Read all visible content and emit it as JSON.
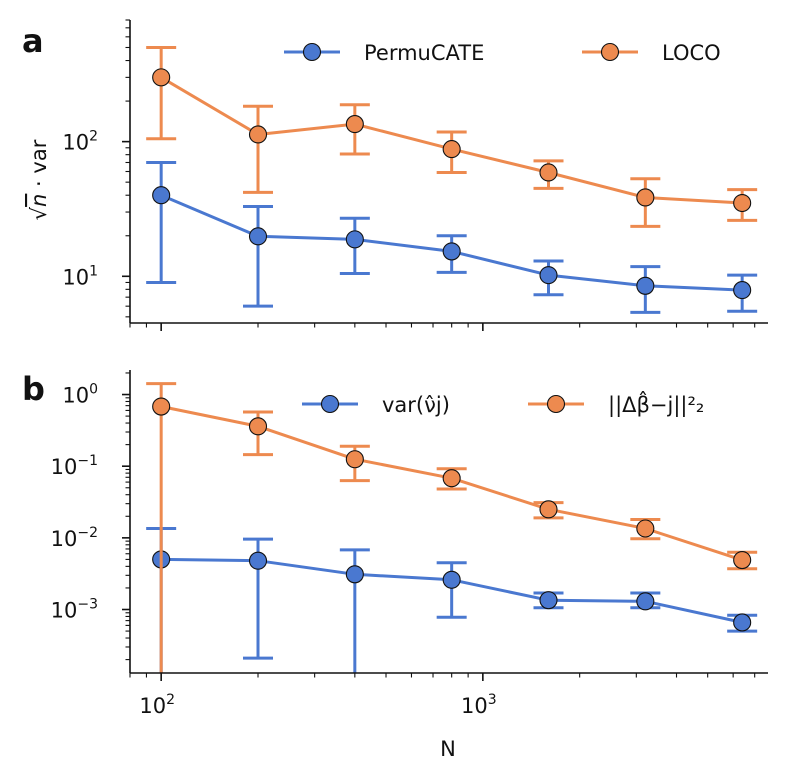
{
  "chart_data": [
    {
      "type": "line",
      "panel_label": "a",
      "title": "",
      "ylabel_parts": [
        "√",
        "n",
        " · var"
      ],
      "yscale": "log",
      "ylim": [
        4.5,
        800
      ],
      "x": [
        100,
        200,
        400,
        800,
        1600,
        3200,
        6400
      ],
      "yticks": [
        {
          "value": 10,
          "base": "10",
          "exp": "1"
        },
        {
          "value": 100,
          "base": "10",
          "exp": "2"
        }
      ],
      "legend_position": "top-right",
      "series": [
        {
          "name": "PermuCATE",
          "color": "#4a78d0",
          "values": [
            40,
            19.8,
            18.8,
            15.3,
            10.2,
            8.5,
            7.9
          ],
          "err_low": [
            9,
            6,
            10.5,
            10.7,
            7.3,
            5.4,
            5.5
          ],
          "err_high": [
            70,
            33,
            27,
            20,
            13,
            11.8,
            10.2
          ]
        },
        {
          "name": "LOCO",
          "color": "#ed8a4f",
          "values": [
            300,
            113,
            135,
            88,
            59,
            38.5,
            35
          ],
          "err_low": [
            105,
            42,
            81,
            59,
            45,
            23.5,
            26
          ],
          "err_high": [
            500,
            183,
            188,
            118,
            72,
            53,
            44
          ]
        }
      ]
    },
    {
      "type": "line",
      "panel_label": "b",
      "title": "",
      "xlabel": "N",
      "yscale": "log",
      "ylim": [
        0.00013,
        2.2
      ],
      "x": [
        100,
        200,
        400,
        800,
        1600,
        3200,
        6400
      ],
      "yticks": [
        {
          "value": 1,
          "base": "10",
          "exp": "0"
        },
        {
          "value": 0.1,
          "base": "10",
          "exp": "−1"
        },
        {
          "value": 0.01,
          "base": "10",
          "exp": "−2"
        },
        {
          "value": 0.001,
          "base": "10",
          "exp": "−3"
        }
      ],
      "xticks": [
        {
          "value": 100,
          "base": "10",
          "exp": "2"
        },
        {
          "value": 1000,
          "base": "10",
          "exp": "3"
        }
      ],
      "legend_position": "top-right",
      "series": [
        {
          "name": "var(ν̂j)",
          "color": "#4a78d0",
          "values": [
            0.005,
            0.0048,
            0.0031,
            0.0026,
            0.00135,
            0.0013,
            0.00066
          ],
          "err_low": [
            1e-05,
            0.00021,
            1e-05,
            0.00078,
            0.00106,
            0.00106,
            0.0005
          ],
          "err_high": [
            0.0135,
            0.0096,
            0.0068,
            0.0045,
            0.0017,
            0.0017,
            0.00083
          ]
        },
        {
          "name": "||Δβ̂−j||²₂",
          "color": "#ed8a4f",
          "values": [
            0.68,
            0.36,
            0.125,
            0.068,
            0.025,
            0.0135,
            0.0049
          ],
          "err_low": [
            1e-05,
            0.145,
            0.063,
            0.048,
            0.019,
            0.0097,
            0.0037
          ],
          "err_high": [
            1.42,
            0.57,
            0.19,
            0.092,
            0.031,
            0.018,
            0.0063
          ]
        }
      ]
    }
  ]
}
